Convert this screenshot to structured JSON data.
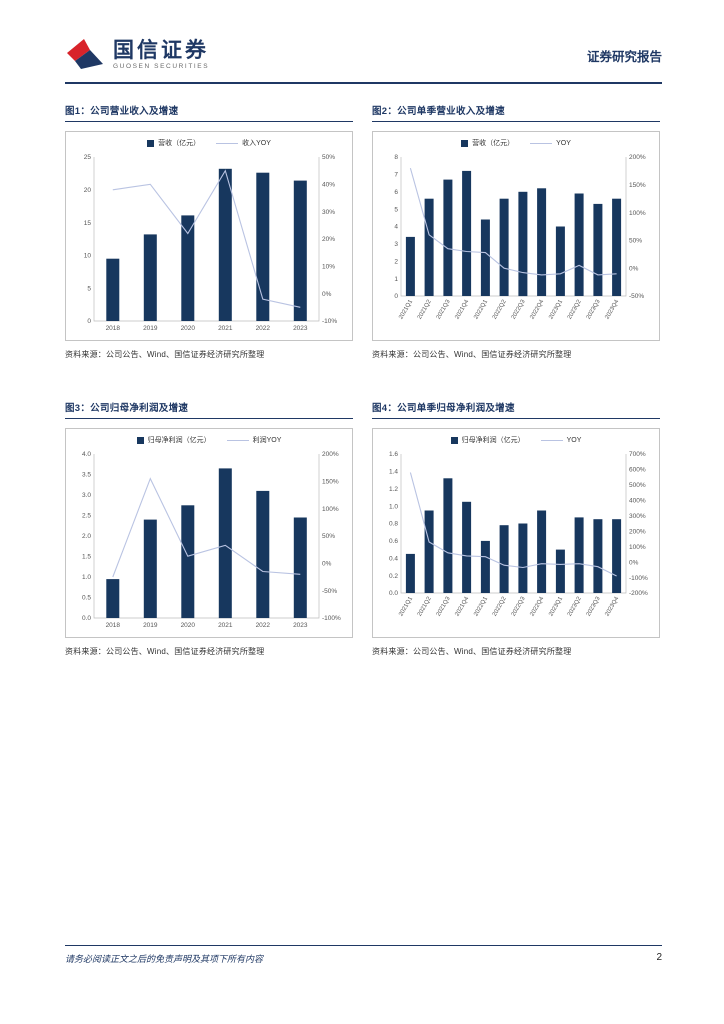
{
  "header": {
    "brand_cn": "国信证券",
    "brand_en": "GUOSEN SECURITIES",
    "report_type": "证券研究报告"
  },
  "footer": {
    "disclaimer": "请务必阅读正文之后的免责声明及其项下所有内容",
    "page_number": "2"
  },
  "colors": {
    "navy_bar": "#17375e",
    "trend_line": "#b9c3e2",
    "accent": "#1f3864",
    "logo_red": "#d8232a"
  },
  "chart_data": [
    {
      "type": "bar",
      "title": "图1：公司营业收入及增速",
      "categories": [
        "2018",
        "2019",
        "2020",
        "2021",
        "2022",
        "2023"
      ],
      "series": [
        {
          "name": "营收（亿元）",
          "type": "bar",
          "axis": "left",
          "values": [
            9.5,
            13.2,
            16.1,
            23.2,
            22.6,
            21.4
          ]
        },
        {
          "name": "收入YOY",
          "type": "line",
          "axis": "right",
          "values": [
            38,
            40,
            22,
            45,
            -2,
            -5
          ]
        }
      ],
      "left_axis": {
        "min": 0,
        "max": 25,
        "step": 5,
        "decimals": 0
      },
      "right_axis": {
        "min": -10,
        "max": 50,
        "step": 10
      },
      "rotate_labels": false,
      "legend_position": "top",
      "grid": false,
      "source": "资料来源：公司公告、Wind、国信证券经济研究所整理"
    },
    {
      "type": "bar",
      "title": "图2：公司单季营业收入及增速",
      "categories": [
        "2021Q1",
        "2021Q2",
        "2021Q3",
        "2021Q4",
        "2022Q1",
        "2022Q2",
        "2022Q3",
        "2022Q4",
        "2023Q1",
        "2023Q2",
        "2023Q3",
        "2023Q4"
      ],
      "series": [
        {
          "name": "营收（亿元）",
          "type": "bar",
          "axis": "left",
          "values": [
            3.4,
            5.6,
            6.7,
            7.2,
            4.4,
            5.6,
            6.0,
            6.2,
            4.0,
            5.9,
            5.3,
            5.6
          ]
        },
        {
          "name": "YOY",
          "type": "line",
          "axis": "right",
          "values": [
            180,
            60,
            35,
            30,
            28,
            0,
            -8,
            -12,
            -10,
            5,
            -12,
            -10
          ]
        }
      ],
      "left_axis": {
        "min": 0,
        "max": 8,
        "step": 1,
        "decimals": 0
      },
      "right_axis": {
        "min": -50,
        "max": 200,
        "step": 50
      },
      "rotate_labels": true,
      "legend_position": "top",
      "grid": false,
      "source": "资料来源：公司公告、Wind、国信证券经济研究所整理"
    },
    {
      "type": "bar",
      "title": "图3：公司归母净利润及增速",
      "categories": [
        "2018",
        "2019",
        "2020",
        "2021",
        "2022",
        "2023"
      ],
      "series": [
        {
          "name": "归母净利润（亿元）",
          "type": "bar",
          "axis": "left",
          "values": [
            0.95,
            2.4,
            2.75,
            3.65,
            3.1,
            2.45
          ]
        },
        {
          "name": "利润YOY",
          "type": "line",
          "axis": "right",
          "values": [
            -25,
            155,
            13,
            33,
            -15,
            -20
          ]
        }
      ],
      "left_axis": {
        "min": 0,
        "max": 4,
        "step": 0.5,
        "decimals": 1
      },
      "right_axis": {
        "min": -100,
        "max": 200,
        "step": 50
      },
      "rotate_labels": false,
      "legend_position": "top",
      "grid": false,
      "source": "资料来源：公司公告、Wind、国信证券经济研究所整理"
    },
    {
      "type": "bar",
      "title": "图4：公司单季归母净利润及增速",
      "categories": [
        "2021Q1",
        "2021Q2",
        "2021Q3",
        "2021Q4",
        "2022Q1",
        "2022Q2",
        "2022Q3",
        "2022Q4",
        "2023Q1",
        "2023Q2",
        "2023Q3",
        "2023Q4"
      ],
      "series": [
        {
          "name": "归母净利润（亿元）",
          "type": "bar",
          "axis": "left",
          "values": [
            0.45,
            0.95,
            1.32,
            1.05,
            0.6,
            0.78,
            0.8,
            0.95,
            0.5,
            0.87,
            0.85,
            0.85
          ]
        },
        {
          "name": "YOY",
          "type": "line",
          "axis": "right",
          "values": [
            580,
            130,
            60,
            40,
            35,
            -20,
            -35,
            -10,
            -15,
            -10,
            -30,
            -90
          ]
        }
      ],
      "left_axis": {
        "min": 0,
        "max": 1.6,
        "step": 0.2,
        "decimals": 1
      },
      "right_axis": {
        "min": -200,
        "max": 700,
        "step": 100
      },
      "rotate_labels": true,
      "legend_position": "top",
      "grid": false,
      "source": "资料来源：公司公告、Wind、国信证券经济研究所整理"
    }
  ]
}
